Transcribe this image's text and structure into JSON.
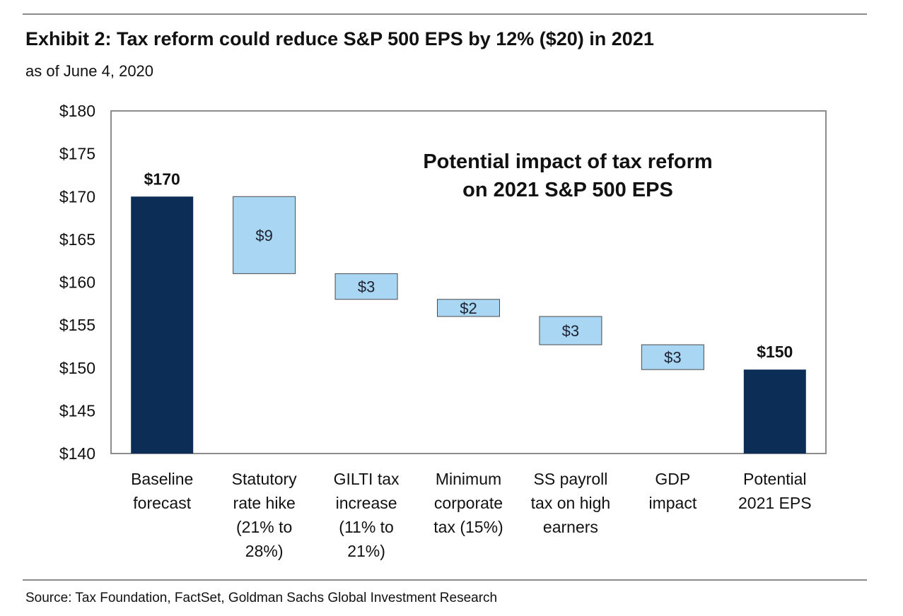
{
  "title": "Exhibit 2: Tax reform could reduce S&P 500 EPS by 12% ($20) in 2021",
  "subtitle": "as of June 4, 2020",
  "source": "Source: Tax Foundation, FactSet, Goldman Sachs Global Investment Research",
  "colors": {
    "total": "#0c2d55",
    "change": "#a9d6f2",
    "change_border": "#4a4a4a",
    "frame": "#8c8c8c"
  },
  "chart_data": {
    "type": "bar",
    "subtype": "waterfall",
    "annotation": [
      "Potential impact of tax reform",
      "on 2021  S&P 500 EPS"
    ],
    "ylim": [
      140,
      180
    ],
    "yticks": [
      140,
      145,
      150,
      155,
      160,
      165,
      170,
      175,
      180
    ],
    "ytick_labels": [
      "$140",
      "$145",
      "$150",
      "$155",
      "$160",
      "$165",
      "$170",
      "$175",
      "$180"
    ],
    "grid": false,
    "bars": [
      {
        "category": [
          "Baseline",
          "forecast"
        ],
        "kind": "total",
        "start": 140,
        "end": 170,
        "label": "$170"
      },
      {
        "category": [
          "Statutory",
          "rate hike",
          "(21% to",
          "28%)"
        ],
        "kind": "change",
        "start": 170,
        "end": 161,
        "label": "$9"
      },
      {
        "category": [
          "GILTI tax",
          "increase",
          "(11% to",
          "21%)"
        ],
        "kind": "change",
        "start": 161,
        "end": 158,
        "label": "$3"
      },
      {
        "category": [
          "Minimum",
          "corporate",
          "tax (15%)"
        ],
        "kind": "change",
        "start": 158,
        "end": 156,
        "label": "$2"
      },
      {
        "category": [
          "SS payroll",
          "tax on high",
          "earners"
        ],
        "kind": "change",
        "start": 156,
        "end": 152.7,
        "label": "$3"
      },
      {
        "category": [
          "GDP",
          "impact"
        ],
        "kind": "change",
        "start": 152.7,
        "end": 149.8,
        "label": "$3"
      },
      {
        "category": [
          "Potential",
          "2021 EPS"
        ],
        "kind": "total",
        "start": 140,
        "end": 149.8,
        "label": "$150"
      }
    ]
  }
}
